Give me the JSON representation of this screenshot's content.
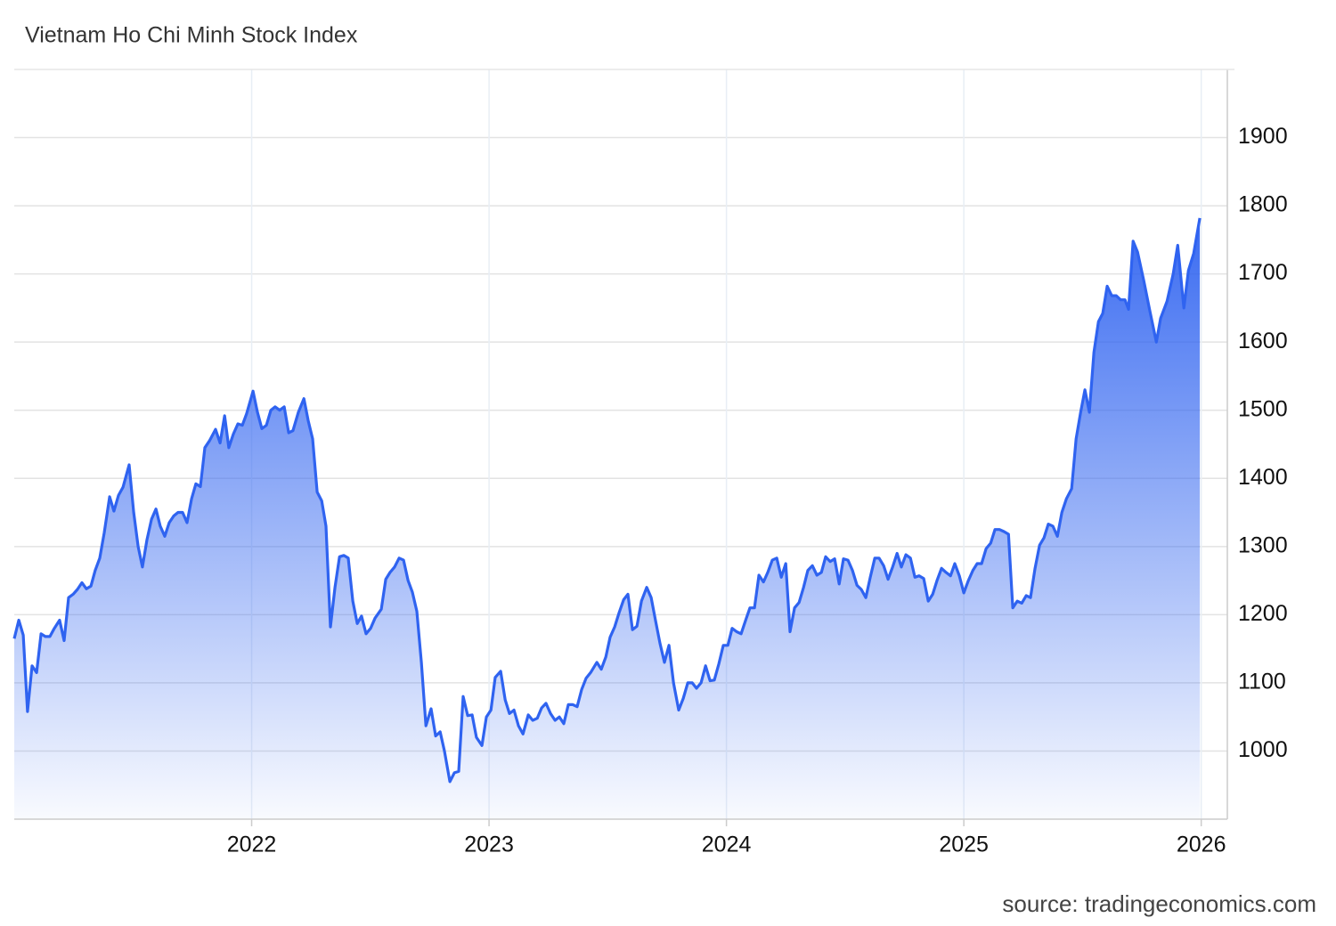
{
  "chart_data": {
    "type": "area",
    "title": "Vietnam Ho Chi Minh Stock Index",
    "source": "source: tradingeconomics.com",
    "color": "#2f63f0",
    "grid": true,
    "xlim": [
      2021.0,
      2026.11
    ],
    "xticks": [
      2022,
      2023,
      2024,
      2025,
      2026
    ],
    "ylim": [
      900,
      2000
    ],
    "yticks": [
      1000,
      1100,
      1200,
      1300,
      1400,
      1500,
      1600,
      1700,
      1800,
      1900
    ],
    "x": [
      2021.0,
      2021.019,
      2021.038,
      2021.056,
      2021.075,
      2021.094,
      2021.113,
      2021.131,
      2021.15,
      2021.169,
      2021.191,
      2021.21,
      2021.229,
      2021.248,
      2021.266,
      2021.285,
      2021.304,
      2021.323,
      2021.341,
      2021.36,
      2021.379,
      2021.402,
      2021.42,
      2021.439,
      2021.458,
      2021.484,
      2021.503,
      2021.522,
      2021.54,
      2021.559,
      2021.578,
      2021.597,
      2021.615,
      2021.634,
      2021.653,
      2021.672,
      2021.69,
      2021.709,
      2021.728,
      2021.747,
      2021.765,
      2021.784,
      2021.803,
      2021.822,
      2021.848,
      2021.867,
      2021.886,
      2021.904,
      2021.923,
      2021.942,
      2021.961,
      2021.979,
      2022.006,
      2022.024,
      2022.043,
      2022.062,
      2022.081,
      2022.099,
      2022.118,
      2022.137,
      2022.156,
      2022.174,
      2022.197,
      2022.22,
      2022.238,
      2022.257,
      2022.276,
      2022.295,
      2022.313,
      2022.332,
      2022.351,
      2022.37,
      2022.388,
      2022.407,
      2022.426,
      2022.445,
      2022.463,
      2022.482,
      2022.501,
      2022.52,
      2022.546,
      2022.565,
      2022.583,
      2022.602,
      2022.621,
      2022.64,
      2022.659,
      2022.677,
      2022.696,
      2022.715,
      2022.734,
      2022.756,
      2022.775,
      2022.794,
      2022.812,
      2022.835,
      2022.854,
      2022.872,
      2022.891,
      2022.91,
      2022.929,
      2022.947,
      2022.97,
      2022.989,
      2023.008,
      2023.026,
      2023.049,
      2023.068,
      2023.086,
      2023.105,
      2023.124,
      2023.143,
      2023.165,
      2023.184,
      2023.203,
      2023.221,
      2023.24,
      2023.259,
      2023.278,
      2023.296,
      2023.315,
      2023.334,
      2023.353,
      2023.371,
      2023.39,
      2023.409,
      2023.428,
      2023.454,
      2023.473,
      2023.492,
      2023.51,
      2023.529,
      2023.548,
      2023.567,
      2023.585,
      2023.604,
      2023.623,
      2023.642,
      2023.664,
      2023.683,
      2023.702,
      2023.72,
      2023.739,
      2023.758,
      2023.777,
      2023.799,
      2023.818,
      2023.837,
      2023.856,
      2023.874,
      2023.893,
      2023.912,
      2023.931,
      2023.949,
      2023.968,
      2023.987,
      2024.006,
      2024.024,
      2024.043,
      2024.062,
      2024.081,
      2024.099,
      2024.118,
      2024.137,
      2024.156,
      2024.174,
      2024.193,
      2024.212,
      2024.231,
      2024.25,
      2024.268,
      2024.287,
      2024.306,
      2024.325,
      2024.343,
      2024.362,
      2024.381,
      2024.4,
      2024.418,
      2024.437,
      2024.456,
      2024.475,
      2024.493,
      2024.512,
      2024.531,
      2024.55,
      2024.568,
      2024.587,
      2024.606,
      2024.625,
      2024.643,
      2024.662,
      2024.681,
      2024.7,
      2024.719,
      2024.737,
      2024.756,
      2024.775,
      2024.794,
      2024.812,
      2024.831,
      2024.85,
      2024.869,
      2024.887,
      2024.906,
      2024.925,
      2024.944,
      2024.962,
      2024.981,
      2025.0,
      2025.019,
      2025.038,
      2025.056,
      2025.075,
      2025.094,
      2025.113,
      2025.131,
      2025.15,
      2025.169,
      2025.188,
      2025.206,
      2025.225,
      2025.244,
      2025.263,
      2025.281,
      2025.3,
      2025.319,
      2025.338,
      2025.356,
      2025.375,
      2025.394,
      2025.413,
      2025.432,
      2025.454,
      2025.473,
      2025.492,
      2025.51,
      2025.529,
      2025.548,
      2025.567,
      2025.585,
      2025.604,
      2025.623,
      2025.642,
      2025.66,
      2025.679,
      2025.694,
      2025.713,
      2025.732,
      2025.758,
      2025.784,
      2025.811,
      2025.829,
      2025.856,
      2025.882,
      2025.901,
      2025.927,
      2025.946,
      2025.968,
      2025.994
    ],
    "values": [
      1165,
      1192,
      1170,
      1058,
      1125,
      1115,
      1172,
      1168,
      1168,
      1180,
      1192,
      1162,
      1225,
      1230,
      1237,
      1247,
      1238,
      1242,
      1265,
      1283,
      1320,
      1373,
      1352,
      1375,
      1387,
      1420,
      1350,
      1300,
      1270,
      1310,
      1340,
      1355,
      1330,
      1315,
      1335,
      1345,
      1350,
      1350,
      1335,
      1370,
      1392,
      1388,
      1445,
      1455,
      1472,
      1452,
      1492,
      1445,
      1465,
      1480,
      1478,
      1495,
      1528,
      1498,
      1473,
      1478,
      1500,
      1505,
      1500,
      1505,
      1467,
      1470,
      1497,
      1517,
      1485,
      1458,
      1380,
      1367,
      1330,
      1182,
      1240,
      1285,
      1287,
      1283,
      1220,
      1187,
      1198,
      1172,
      1180,
      1195,
      1208,
      1252,
      1262,
      1270,
      1283,
      1280,
      1250,
      1233,
      1205,
      1130,
      1037,
      1062,
      1022,
      1028,
      1000,
      955,
      968,
      970,
      1080,
      1052,
      1053,
      1020,
      1008,
      1050,
      1060,
      1108,
      1117,
      1075,
      1055,
      1060,
      1037,
      1025,
      1053,
      1045,
      1048,
      1063,
      1070,
      1055,
      1045,
      1050,
      1040,
      1068,
      1068,
      1065,
      1090,
      1107,
      1115,
      1130,
      1120,
      1138,
      1167,
      1182,
      1203,
      1222,
      1230,
      1178,
      1183,
      1220,
      1240,
      1225,
      1190,
      1158,
      1130,
      1155,
      1100,
      1060,
      1077,
      1100,
      1100,
      1092,
      1100,
      1125,
      1103,
      1104,
      1128,
      1155,
      1155,
      1180,
      1175,
      1172,
      1192,
      1210,
      1210,
      1258,
      1248,
      1262,
      1280,
      1283,
      1255,
      1275,
      1175,
      1210,
      1218,
      1240,
      1265,
      1272,
      1258,
      1262,
      1285,
      1278,
      1282,
      1245,
      1282,
      1280,
      1265,
      1243,
      1237,
      1225,
      1255,
      1283,
      1283,
      1272,
      1252,
      1270,
      1290,
      1270,
      1288,
      1283,
      1255,
      1257,
      1253,
      1220,
      1230,
      1250,
      1268,
      1262,
      1257,
      1275,
      1257,
      1232,
      1250,
      1265,
      1275,
      1275,
      1297,
      1305,
      1325,
      1325,
      1322,
      1318,
      1210,
      1220,
      1217,
      1228,
      1225,
      1268,
      1302,
      1313,
      1333,
      1330,
      1315,
      1350,
      1370,
      1385,
      1458,
      1497,
      1530,
      1497,
      1585,
      1630,
      1642,
      1682,
      1668,
      1668,
      1662,
      1662,
      1648,
      1748,
      1732,
      1690,
      1645,
      1600,
      1635,
      1660,
      1700,
      1742,
      1650,
      1705,
      1730,
      1782
    ]
  }
}
